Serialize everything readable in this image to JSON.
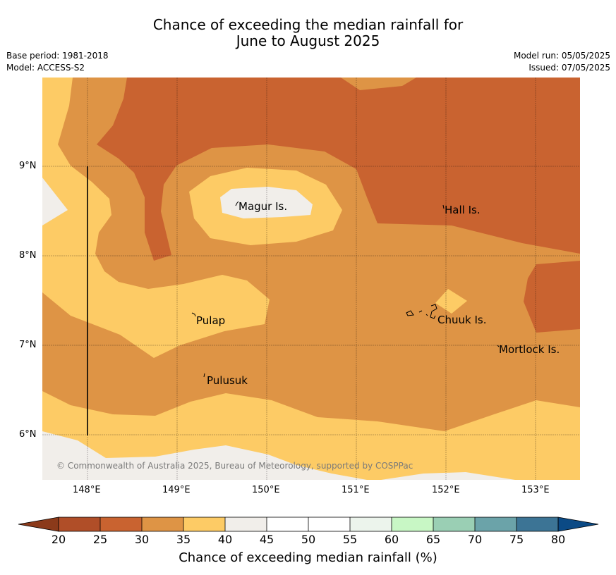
{
  "header": {
    "title_line1": "Chance of exceeding the median rainfall for",
    "title_line2": "June to August 2025",
    "base_period": "Base period: 1981-2018",
    "model": "Model: ACCESS-S2",
    "model_run": "Model run: 05/05/2025",
    "issued": "Issued: 07/05/2025"
  },
  "map": {
    "x_ticks": [
      "148°E",
      "149°E",
      "150°E",
      "151°E",
      "152°E",
      "153°E"
    ],
    "y_ticks": [
      "9°N",
      "8°N",
      "7°N",
      "6°N"
    ],
    "places": {
      "magur": "Magur Is.",
      "hall": "Hall Is.",
      "pulap": "Pulap",
      "chuuk": "Chuuk Is.",
      "mortlock": "Mortlock Is.",
      "pulusuk": "Pulusuk"
    },
    "copyright": "© Commonwealth of Australia 2025, Bureau of Meteorology, supported by COSPPac"
  },
  "colorbar": {
    "label": "Chance of exceeding median rainfall (%)",
    "ticks": [
      "20",
      "25",
      "30",
      "35",
      "40",
      "45",
      "50",
      "55",
      "60",
      "65",
      "70",
      "75",
      "80"
    ],
    "colors": {
      "below20": "#8b3a1a",
      "c20_25": "#b04e28",
      "c25_30": "#c96330",
      "c30_35": "#de9445",
      "c35_40": "#fdcb65",
      "c40_45": "#f1eeea",
      "c45_50": "#ffffff",
      "c50_55": "#ffffff",
      "c55_60": "#ecf4ec",
      "c60_65": "#c8f7c5",
      "c65_70": "#9acfb4",
      "c70_75": "#6ba3a9",
      "c75_80": "#3c7495",
      "above80": "#0b4a85"
    }
  }
}
